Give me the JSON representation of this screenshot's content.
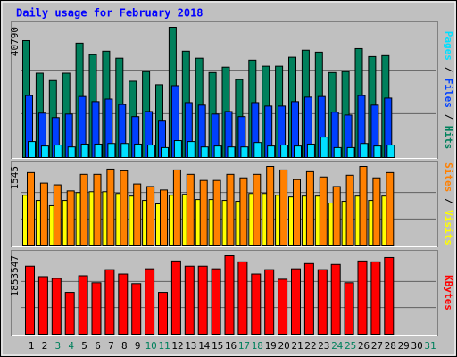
{
  "chart_data": {
    "type": "bar",
    "title": "Daily usage for February 2018",
    "categories": [
      "1",
      "2",
      "3",
      "4",
      "5",
      "6",
      "7",
      "8",
      "9",
      "10",
      "11",
      "12",
      "13",
      "14",
      "15",
      "16",
      "17",
      "18",
      "19",
      "20",
      "21",
      "22",
      "23",
      "24",
      "25",
      "26",
      "27",
      "28",
      "29",
      "30",
      "31"
    ],
    "category_colors": [
      "#000000",
      "#000000",
      "#00805c",
      "#00805c",
      "#000000",
      "#000000",
      "#000000",
      "#000000",
      "#000000",
      "#00805c",
      "#00805c",
      "#000000",
      "#000000",
      "#000000",
      "#000000",
      "#000000",
      "#00805c",
      "#00805c",
      "#000000",
      "#000000",
      "#000000",
      "#000000",
      "#000000",
      "#00805c",
      "#00805c",
      "#000000",
      "#000000",
      "#000000",
      "#000000",
      "#000000",
      "#00805c"
    ],
    "legend_separator": " / ",
    "panels": [
      {
        "ylim": [
          0,
          40790
        ],
        "yticks": [
          40790
        ],
        "series": [
          {
            "name": "Hits",
            "color": "#00805c",
            "values": [
              36600,
              26400,
              24100,
              26400,
              35800,
              32200,
              33300,
              31100,
              23900,
              26900,
              22800,
              40790,
              33300,
              31100,
              26600,
              28300,
              24400,
              30500,
              28600,
              28600,
              31400,
              33600,
              33000,
              26600,
              26900,
              34100,
              31600,
              31900,
              null,
              null,
              null
            ]
          },
          {
            "name": "Files",
            "color": "#0040ff",
            "values": [
              19400,
              13900,
              12500,
              13600,
              19100,
              17500,
              18300,
              16600,
              12800,
              14400,
              11400,
              22500,
              17200,
              16400,
              13600,
              14400,
              12800,
              17200,
              16100,
              16100,
              17500,
              18900,
              19100,
              14200,
              13300,
              19400,
              16400,
              18600,
              null,
              null,
              null
            ]
          },
          {
            "name": "Pages",
            "color": "#00e0ff",
            "values": [
              5000,
              3600,
              3900,
              3300,
              4200,
              4200,
              4400,
              4400,
              4200,
              3900,
              3100,
              5300,
              5000,
              3300,
              3600,
              3300,
              3300,
              4700,
              3600,
              3900,
              3600,
              4200,
              6400,
              3100,
              3100,
              4400,
              3600,
              3900,
              null,
              null,
              null
            ]
          }
        ]
      },
      {
        "ylim": [
          0,
          1545
        ],
        "yticks": [
          1545
        ],
        "series": [
          {
            "name": "Visits",
            "color": "#ffff00",
            "values": [
              986,
              884,
              782,
              884,
              1037,
              1054,
              1054,
              1020,
              969,
              884,
              816,
              986,
              1003,
              901,
              901,
              884,
              867,
              1020,
              1020,
              986,
              952,
              969,
              969,
              833,
              867,
              969,
              884,
              969,
              null,
              null,
              null
            ]
          },
          {
            "name": "Sites",
            "color": "#ff8000",
            "values": [
              1426,
              1222,
              1188,
              1070,
              1392,
              1392,
              1494,
              1460,
              1205,
              1155,
              1087,
              1477,
              1392,
              1273,
              1273,
              1392,
              1324,
              1392,
              1545,
              1477,
              1290,
              1443,
              1341,
              1155,
              1375,
              1545,
              1324,
              1426,
              null,
              null,
              null
            ]
          }
        ]
      },
      {
        "ylim": [
          0,
          1853547
        ],
        "yticks": [
          1853547
        ],
        "series": [
          {
            "name": "KBytes",
            "color": "#ff0000",
            "values": [
              1606400,
              1359300,
              1318100,
              988600,
              1379900,
              1215100,
              1524000,
              1421100,
              1194500,
              1544600,
              988600,
              1730000,
              1606400,
              1606400,
              1544600,
              1853547,
              1709400,
              1421100,
              1524000,
              1297500,
              1544600,
              1668200,
              1524000,
              1647600,
              1215100,
              1730000,
              1709400,
              1812400,
              null,
              null,
              null
            ]
          }
        ]
      }
    ]
  }
}
